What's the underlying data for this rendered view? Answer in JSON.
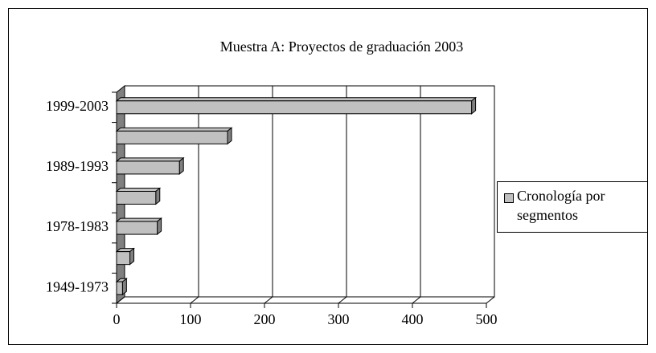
{
  "chart_data": {
    "type": "bar",
    "orientation": "horizontal",
    "title": "Muestra A: Proyectos de graduación 2003",
    "categories": [
      "1999-2003",
      null,
      "1989-1993",
      null,
      "1978-1983",
      null,
      "1949-1973"
    ],
    "series": [
      {
        "name": "Cronología por segmentos",
        "color": "#c0c0c0",
        "values": [
          480,
          150,
          85,
          53,
          55,
          18,
          8
        ]
      }
    ],
    "xlim": [
      0,
      500
    ],
    "xticks": [
      0,
      100,
      200,
      300,
      400,
      500
    ],
    "grid": true,
    "legend": "right"
  }
}
